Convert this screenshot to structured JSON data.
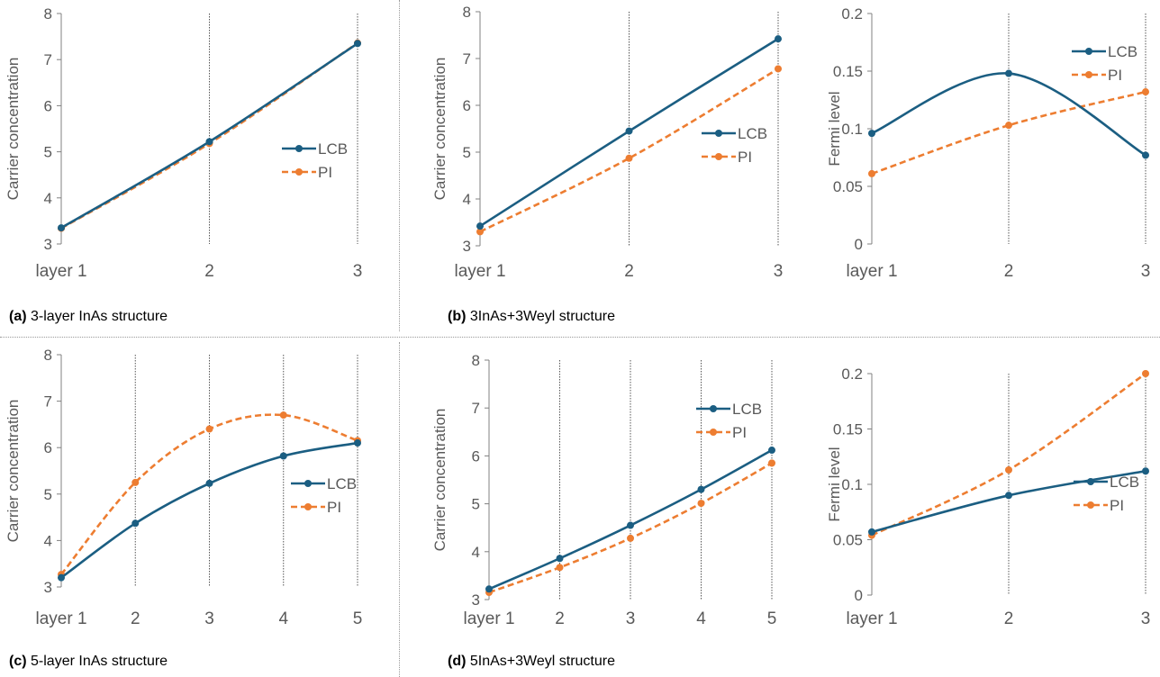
{
  "colors": {
    "lcb": "#1b5e82",
    "pi": "#ed7d31",
    "axis": "#808080",
    "grid": "#555555",
    "text": "#595959"
  },
  "captions": [
    {
      "tag": "(a)",
      "text": "3-layer InAs structure"
    },
    {
      "tag": "(b)",
      "text": "3InAs+3Weyl structure"
    },
    {
      "tag": "(c)",
      "text": "5-layer InAs structure"
    },
    {
      "tag": "(d)",
      "text": "5InAs+3Weyl structure"
    }
  ],
  "chart_data": [
    {
      "type": "line",
      "panel": "a",
      "categories": [
        "layer 1",
        "2",
        "3"
      ],
      "ylabel": "Carrier concentration",
      "ylim": [
        3,
        8
      ],
      "yticks": [
        3,
        4,
        5,
        6,
        7,
        8
      ],
      "legend": "right",
      "vertical_gridlines": true,
      "series": [
        {
          "name": "LCB",
          "style": "solid",
          "values": [
            3.35,
            5.22,
            7.35
          ]
        },
        {
          "name": "PI",
          "style": "dashed",
          "values": [
            3.34,
            5.18,
            7.36
          ]
        }
      ]
    },
    {
      "type": "line",
      "panel": "b-left",
      "categories": [
        "layer 1",
        "2",
        "3"
      ],
      "ylabel": "Carrier concentration",
      "ylim": [
        3,
        8
      ],
      "yticks": [
        3,
        4,
        5,
        6,
        7,
        8
      ],
      "legend": "right",
      "vertical_gridlines": true,
      "series": [
        {
          "name": "LCB",
          "style": "solid",
          "values": [
            3.42,
            5.45,
            7.42
          ]
        },
        {
          "name": "PI",
          "style": "dashed",
          "values": [
            3.3,
            4.87,
            6.78
          ]
        }
      ]
    },
    {
      "type": "line",
      "panel": "b-right",
      "categories": [
        "layer 1",
        "2",
        "3"
      ],
      "ylabel": "Fermi level",
      "ylim": [
        0,
        0.2
      ],
      "yticks": [
        0,
        0.05,
        0.1,
        0.15,
        0.2
      ],
      "ytick_labels": [
        "0",
        "0.05",
        "0.1",
        "0.15",
        "0.2"
      ],
      "legend": "top-right",
      "vertical_gridlines": true,
      "series": [
        {
          "name": "LCB",
          "style": "solid",
          "values": [
            0.096,
            0.148,
            0.077
          ]
        },
        {
          "name": "PI",
          "style": "dashed",
          "values": [
            0.061,
            0.103,
            0.132
          ]
        }
      ]
    },
    {
      "type": "line",
      "panel": "c",
      "categories": [
        "layer 1",
        "2",
        "3",
        "4",
        "5"
      ],
      "ylabel": "Carrier concentration",
      "ylim": [
        3,
        8
      ],
      "yticks": [
        3,
        4,
        5,
        6,
        7,
        8
      ],
      "legend": "right",
      "vertical_gridlines": true,
      "series": [
        {
          "name": "LCB",
          "style": "solid",
          "values": [
            3.2,
            4.37,
            5.23,
            5.82,
            6.1
          ]
        },
        {
          "name": "PI",
          "style": "dashed",
          "values": [
            3.27,
            5.25,
            6.4,
            6.7,
            6.15
          ]
        }
      ]
    },
    {
      "type": "line",
      "panel": "d-left",
      "categories": [
        "layer 1",
        "2",
        "3",
        "4",
        "5"
      ],
      "ylabel": "Carrier concentration",
      "ylim": [
        3,
        8
      ],
      "yticks": [
        3,
        4,
        5,
        6,
        7,
        8
      ],
      "legend": "top-right",
      "vertical_gridlines": true,
      "series": [
        {
          "name": "LCB",
          "style": "solid",
          "values": [
            3.22,
            3.86,
            4.55,
            5.3,
            6.12
          ]
        },
        {
          "name": "PI",
          "style": "dashed",
          "values": [
            3.15,
            3.67,
            4.28,
            5.01,
            5.85
          ]
        }
      ]
    },
    {
      "type": "line",
      "panel": "d-right",
      "categories": [
        "layer 1",
        "2",
        "3"
      ],
      "ylabel": "Fermi level",
      "ylim": [
        0,
        0.2
      ],
      "yticks": [
        0,
        0.05,
        0.1,
        0.15,
        0.2
      ],
      "ytick_labels": [
        "0",
        "0.05",
        "0.1",
        "0.15",
        "0.2"
      ],
      "legend": "right",
      "vertical_gridlines": true,
      "series": [
        {
          "name": "LCB",
          "style": "solid",
          "values": [
            0.057,
            0.09,
            0.112
          ]
        },
        {
          "name": "PI",
          "style": "dashed",
          "values": [
            0.054,
            0.113,
            0.2
          ]
        }
      ]
    }
  ]
}
